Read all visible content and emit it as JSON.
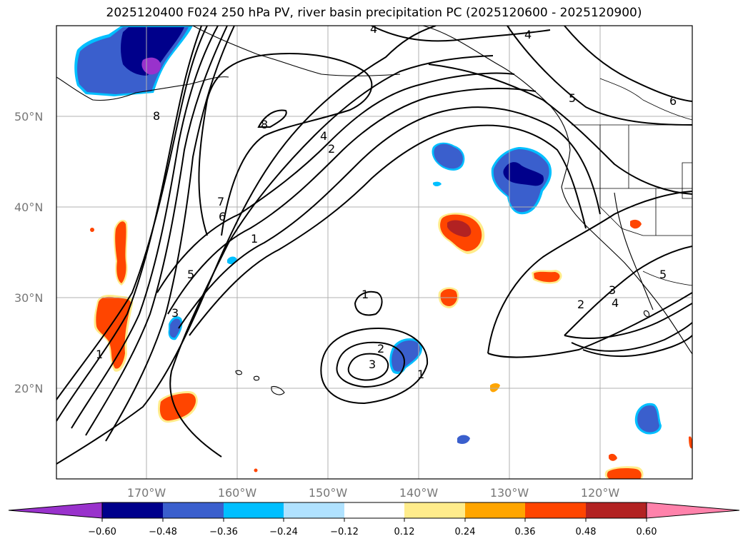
{
  "title": "2025120400 F024 250 hPa PV, river basin precipitation PC (2025120600 - 2025120900)",
  "lat_labels": [
    "50°N",
    "40°N",
    "30°N",
    "20°N"
  ],
  "lon_labels": [
    "170°W",
    "160°W",
    "150°W",
    "140°W",
    "130°W",
    "120°W"
  ],
  "colorbar": {
    "colors": [
      "#9932CC",
      "#00008B",
      "#3A5FCD",
      "#00BFFF",
      "#B0E2FF",
      "#FFFFFF",
      "#FFEC8B",
      "#FFA500",
      "#FF4500",
      "#B22222",
      "#FF82AB"
    ],
    "tick_labels": [
      "−0.60",
      "−0.48",
      "−0.36",
      "−0.24",
      "−0.12",
      "0.12",
      "0.24",
      "0.36",
      "0.48",
      "0.60"
    ]
  },
  "contour_labels": [
    "4",
    "4",
    "5",
    "6",
    "8",
    "8",
    "4",
    "2",
    "7",
    "6",
    "1",
    "5",
    "3",
    "1",
    "1",
    "2",
    "3",
    "1",
    "2",
    "3",
    "4",
    "5"
  ]
}
